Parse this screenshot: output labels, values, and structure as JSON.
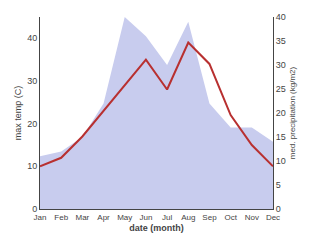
{
  "chart_data": {
    "type": "line",
    "categories": [
      "Jan",
      "Feb",
      "Mar",
      "Apr",
      "May",
      "Jun",
      "Jul",
      "Aug",
      "Sep",
      "Oct",
      "Nov",
      "Dec"
    ],
    "series": [
      {
        "type": "area",
        "color": "#c8ccee",
        "axis": "y2",
        "values": [
          11,
          12,
          15,
          22,
          40,
          36,
          30,
          39,
          22,
          17,
          17,
          14
        ]
      },
      {
        "type": "line",
        "color": "#b83030",
        "values": [
          10,
          12,
          17,
          23,
          29,
          35,
          28,
          39,
          34,
          22,
          15,
          10
        ]
      }
    ],
    "xlabel": "date (month)",
    "ylabel": "max temp (C)",
    "y2label": "med. precipitation (kg/m2)",
    "ylim": [
      0,
      45
    ],
    "yticks": [
      0,
      10,
      20,
      30,
      40
    ],
    "y2lim": [
      0,
      40
    ],
    "y2ticks": [
      0,
      5,
      10,
      15,
      20,
      25,
      30,
      35,
      40
    ],
    "grid": false
  }
}
